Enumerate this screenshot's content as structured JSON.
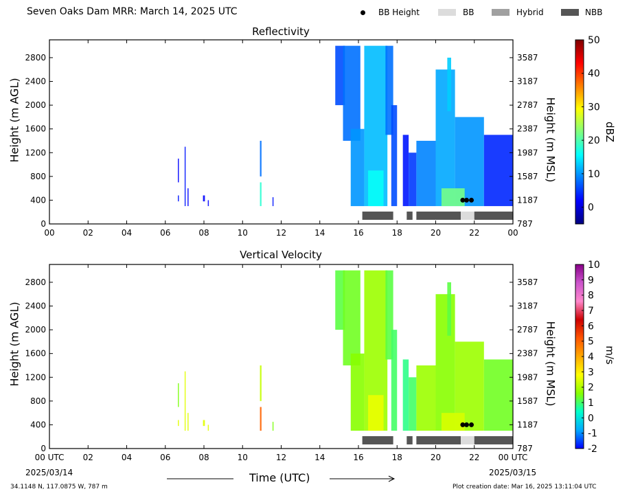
{
  "header": {
    "title": "Seven Oaks Dam MRR:  March 14, 2025 UTC",
    "legend": [
      {
        "label": "BB Height",
        "kind": "dot",
        "color": "#000000"
      },
      {
        "label": "BB",
        "kind": "bar",
        "color": "#dcdcdc"
      },
      {
        "label": "Hybrid",
        "kind": "bar",
        "color": "#a0a0a0"
      },
      {
        "label": "NBB",
        "kind": "bar",
        "color": "#555555"
      }
    ]
  },
  "footer": {
    "location": "34.1148 N, 117.0875 W, 787 m",
    "created": "Plot creation date: Mar 16, 2025 13:11:04 UTC"
  },
  "x_axis": {
    "label": "Time (UTC)",
    "ticks": [
      "00",
      "02",
      "04",
      "06",
      "08",
      "10",
      "12",
      "14",
      "16",
      "18",
      "20",
      "22",
      "00"
    ],
    "ticks_bottom": [
      "00 UTC",
      "02",
      "04",
      "06",
      "08",
      "10",
      "12",
      "14",
      "16",
      "18",
      "20",
      "22",
      "00 UTC"
    ],
    "start_date": "2025/03/14",
    "end_date": "2025/03/15"
  },
  "colors": {
    "bb": "#dcdcdc",
    "nbb": "#555555",
    "dot": "#000000"
  },
  "chart_data": [
    {
      "type": "heatmap",
      "title": "Reflectivity",
      "ylabel": "Height (m AGL)",
      "ylabel_right": "Height (m MSL)",
      "yticks": [
        0,
        400,
        800,
        1200,
        1600,
        2000,
        2400,
        2800
      ],
      "yticks_right": [
        787,
        1187,
        1587,
        1987,
        2387,
        2787,
        3187,
        3587
      ],
      "xlim": [
        0,
        24
      ],
      "ylim": [
        0,
        3100
      ],
      "colorbar": {
        "label": "dBZ",
        "range": [
          -5,
          50
        ],
        "ticks": [
          0,
          10,
          20,
          30,
          40,
          50
        ],
        "colors": [
          "#00007f",
          "#0000ff",
          "#007fff",
          "#00ffff",
          "#7fff7f",
          "#ffff00",
          "#ff7f00",
          "#ff0000",
          "#7f0000"
        ]
      },
      "rain_field": [
        {
          "x": [
            6.65,
            6.7
          ],
          "y": [
            700,
            1100
          ],
          "value": 2
        },
        {
          "x": [
            6.65,
            6.7
          ],
          "y": [
            380,
            480
          ],
          "value": 3
        },
        {
          "x": [
            7.0,
            7.05
          ],
          "y": [
            300,
            1300
          ],
          "value": 3
        },
        {
          "x": [
            7.15,
            7.2
          ],
          "y": [
            300,
            600
          ],
          "value": 2
        },
        {
          "x": [
            7.95,
            8.05
          ],
          "y": [
            380,
            480
          ],
          "value": 2
        },
        {
          "x": [
            8.2,
            8.25
          ],
          "y": [
            300,
            400
          ],
          "value": 2
        },
        {
          "x": [
            10.9,
            10.98
          ],
          "y": [
            800,
            1400
          ],
          "value": 8
        },
        {
          "x": [
            10.9,
            10.98
          ],
          "y": [
            300,
            700
          ],
          "value": 18
        },
        {
          "x": [
            11.55,
            11.6
          ],
          "y": [
            300,
            450
          ],
          "value": 3
        },
        {
          "x": [
            14.8,
            15.3
          ],
          "y": [
            2000,
            3000
          ],
          "value": 6
        },
        {
          "x": [
            15.2,
            16.1
          ],
          "y": [
            1400,
            3000
          ],
          "value": 8
        },
        {
          "x": [
            15.6,
            16.3
          ],
          "y": [
            300,
            1600
          ],
          "value": 10
        },
        {
          "x": [
            16.3,
            17.5
          ],
          "y": [
            300,
            3000
          ],
          "value": 12
        },
        {
          "x": [
            17.4,
            17.8
          ],
          "y": [
            1500,
            3000
          ],
          "value": 8
        },
        {
          "x": [
            17.7,
            18.0
          ],
          "y": [
            300,
            2000
          ],
          "value": 6
        },
        {
          "x": [
            18.3,
            18.6
          ],
          "y": [
            300,
            1500
          ],
          "value": 3
        },
        {
          "x": [
            18.6,
            19.0
          ],
          "y": [
            300,
            1200
          ],
          "value": 5
        },
        {
          "x": [
            19.0,
            20.0
          ],
          "y": [
            300,
            1400
          ],
          "value": 9
        },
        {
          "x": [
            20.0,
            21.0
          ],
          "y": [
            300,
            2600
          ],
          "value": 11
        },
        {
          "x": [
            20.6,
            20.8
          ],
          "y": [
            1900,
            2800
          ],
          "value": 13
        },
        {
          "x": [
            21.0,
            22.5
          ],
          "y": [
            300,
            1800
          ],
          "value": 10
        },
        {
          "x": [
            22.5,
            24.0
          ],
          "y": [
            300,
            1500
          ],
          "value": 4
        },
        {
          "x": [
            16.5,
            17.3
          ],
          "y": [
            300,
            900
          ],
          "value": 16
        },
        {
          "x": [
            20.3,
            21.5
          ],
          "y": [
            300,
            600
          ],
          "value": 22
        }
      ],
      "band_segments": [
        {
          "x": [
            16.2,
            17.8
          ],
          "kind": "NBB"
        },
        {
          "x": [
            18.5,
            18.8
          ],
          "kind": "NBB"
        },
        {
          "x": [
            19.0,
            21.3
          ],
          "kind": "NBB"
        },
        {
          "x": [
            21.3,
            22.0
          ],
          "kind": "BB"
        },
        {
          "x": [
            22.0,
            24.0
          ],
          "kind": "NBB"
        }
      ],
      "bb_height_points": [
        {
          "x": 21.4,
          "y": 400
        },
        {
          "x": 21.6,
          "y": 400
        },
        {
          "x": 21.85,
          "y": 400
        }
      ]
    },
    {
      "type": "heatmap",
      "title": "Vertical Velocity",
      "ylabel": "Height (m AGL)",
      "ylabel_right": "Height (m MSL)",
      "yticks": [
        0,
        400,
        800,
        1200,
        1600,
        2000,
        2400,
        2800
      ],
      "yticks_right": [
        787,
        1187,
        1587,
        1987,
        2387,
        2787,
        3187,
        3587
      ],
      "xlim": [
        0,
        24
      ],
      "ylim": [
        0,
        3100
      ],
      "colorbar": {
        "label": "m/s",
        "range": [
          -2,
          10
        ],
        "ticks": [
          -2,
          -1,
          0,
          1,
          2,
          3,
          4,
          5,
          6,
          7,
          8,
          9,
          10
        ],
        "colors": [
          "#0000ff",
          "#00aaff",
          "#00ffcc",
          "#88ff00",
          "#ffff00",
          "#ffaa00",
          "#ff5500",
          "#cc0000",
          "#ff88cc",
          "#cc55cc",
          "#880088"
        ]
      },
      "rain_field": [
        {
          "x": [
            6.65,
            6.7
          ],
          "y": [
            700,
            1100
          ],
          "value": 1.5
        },
        {
          "x": [
            6.65,
            6.7
          ],
          "y": [
            380,
            480
          ],
          "value": 2.5
        },
        {
          "x": [
            7.0,
            7.05
          ],
          "y": [
            300,
            1300
          ],
          "value": 2.5
        },
        {
          "x": [
            7.15,
            7.2
          ],
          "y": [
            300,
            600
          ],
          "value": 2.5
        },
        {
          "x": [
            7.95,
            8.05
          ],
          "y": [
            380,
            480
          ],
          "value": 2.5
        },
        {
          "x": [
            8.2,
            8.25
          ],
          "y": [
            300,
            400
          ],
          "value": 2.5
        },
        {
          "x": [
            10.9,
            10.98
          ],
          "y": [
            800,
            1400
          ],
          "value": 2.2
        },
        {
          "x": [
            10.9,
            10.98
          ],
          "y": [
            300,
            700
          ],
          "value": 5
        },
        {
          "x": [
            11.55,
            11.6
          ],
          "y": [
            300,
            450
          ],
          "value": 1.5
        },
        {
          "x": [
            14.8,
            15.3
          ],
          "y": [
            2000,
            3000
          ],
          "value": 1.2
        },
        {
          "x": [
            15.2,
            16.1
          ],
          "y": [
            1400,
            3000
          ],
          "value": 1.4
        },
        {
          "x": [
            15.6,
            16.3
          ],
          "y": [
            300,
            1600
          ],
          "value": 1.6
        },
        {
          "x": [
            16.3,
            17.5
          ],
          "y": [
            300,
            3000
          ],
          "value": 1.8
        },
        {
          "x": [
            17.4,
            17.8
          ],
          "y": [
            1500,
            3000
          ],
          "value": 1.2
        },
        {
          "x": [
            17.7,
            18.0
          ],
          "y": [
            300,
            2000
          ],
          "value": 1.0
        },
        {
          "x": [
            18.3,
            18.6
          ],
          "y": [
            300,
            1500
          ],
          "value": 0.8
        },
        {
          "x": [
            18.6,
            19.0
          ],
          "y": [
            300,
            1200
          ],
          "value": 1.0
        },
        {
          "x": [
            19.0,
            20.0
          ],
          "y": [
            300,
            1400
          ],
          "value": 1.8
        },
        {
          "x": [
            20.0,
            21.0
          ],
          "y": [
            300,
            2600
          ],
          "value": 1.6
        },
        {
          "x": [
            20.6,
            20.8
          ],
          "y": [
            1900,
            2800
          ],
          "value": 1.2
        },
        {
          "x": [
            21.0,
            22.5
          ],
          "y": [
            300,
            1800
          ],
          "value": 1.8
        },
        {
          "x": [
            22.5,
            24.0
          ],
          "y": [
            300,
            1500
          ],
          "value": 1.4
        },
        {
          "x": [
            16.5,
            17.3
          ],
          "y": [
            300,
            900
          ],
          "value": 2.6
        },
        {
          "x": [
            20.3,
            21.5
          ],
          "y": [
            300,
            600
          ],
          "value": 2.4
        }
      ],
      "band_segments": [
        {
          "x": [
            16.2,
            17.8
          ],
          "kind": "NBB"
        },
        {
          "x": [
            18.5,
            18.8
          ],
          "kind": "NBB"
        },
        {
          "x": [
            19.0,
            21.3
          ],
          "kind": "NBB"
        },
        {
          "x": [
            21.3,
            22.0
          ],
          "kind": "BB"
        },
        {
          "x": [
            22.0,
            24.0
          ],
          "kind": "NBB"
        }
      ],
      "bb_height_points": [
        {
          "x": 21.4,
          "y": 400
        },
        {
          "x": 21.6,
          "y": 400
        },
        {
          "x": 21.85,
          "y": 400
        }
      ]
    }
  ]
}
